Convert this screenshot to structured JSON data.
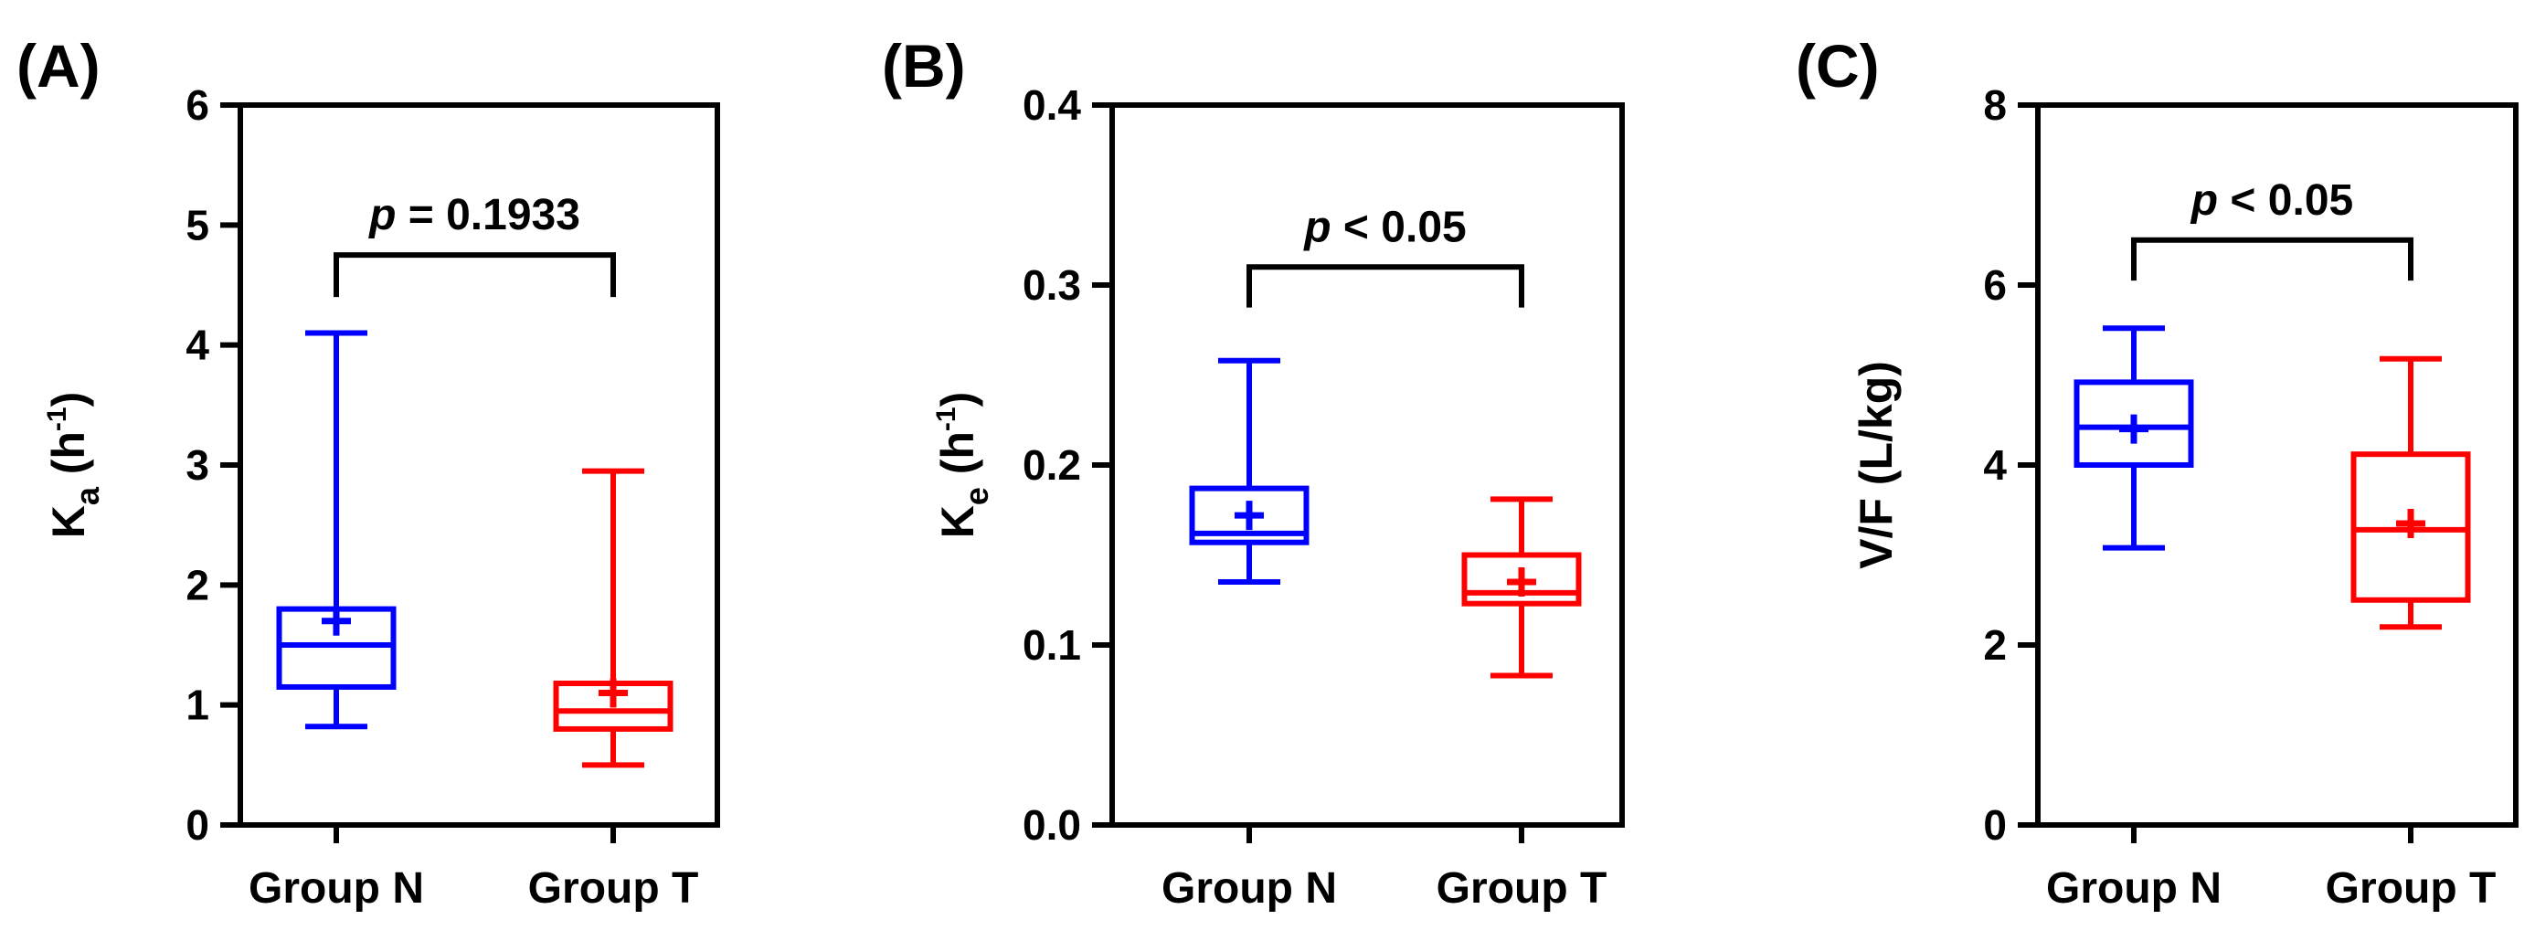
{
  "figure_labels": [
    "(A)",
    "(B)",
    "(C)"
  ],
  "chart_data": [
    {
      "type": "box",
      "panel_label": "(A)",
      "ylabel": {
        "base": "K",
        "subscript": "a",
        "unit_open": " (h",
        "superscript": "-1",
        "unit_close": ")"
      },
      "ylim": [
        0,
        6
      ],
      "yticks": [
        0,
        1,
        2,
        3,
        4,
        5,
        6
      ],
      "ytick_labels": [
        "0",
        "1",
        "2",
        "3",
        "4",
        "5",
        "6"
      ],
      "categories": [
        "Group N",
        "Group T"
      ],
      "series": [
        {
          "name": "Group N",
          "color": "#0000ff",
          "min": 0.82,
          "q1": 1.15,
          "median": 1.5,
          "q3": 1.8,
          "max": 4.1,
          "mean": 1.7
        },
        {
          "name": "Group T",
          "color": "#ff0000",
          "min": 0.5,
          "q1": 0.8,
          "median": 0.95,
          "q3": 1.18,
          "max": 2.95,
          "mean": 1.1
        }
      ],
      "significance": {
        "p_symbol": "p",
        "p_text": " = 0.1933",
        "bracket_y": 4.75,
        "bracket_drop": 0.35
      },
      "grid": false
    },
    {
      "type": "box",
      "panel_label": "(B)",
      "ylabel": {
        "base": "K",
        "subscript": "e",
        "unit_open": " (h",
        "superscript": "-1",
        "unit_close": ")"
      },
      "ylim": [
        0,
        0.4
      ],
      "yticks": [
        0,
        0.1,
        0.2,
        0.3,
        0.4
      ],
      "ytick_labels": [
        "0.0",
        "0.1",
        "0.2",
        "0.3",
        "0.4"
      ],
      "categories": [
        "Group N",
        "Group T"
      ],
      "series": [
        {
          "name": "Group N",
          "color": "#0000ff",
          "min": 0.135,
          "q1": 0.157,
          "median": 0.162,
          "q3": 0.187,
          "max": 0.258,
          "mean": 0.172
        },
        {
          "name": "Group T",
          "color": "#ff0000",
          "min": 0.083,
          "q1": 0.123,
          "median": 0.129,
          "q3": 0.15,
          "max": 0.181,
          "mean": 0.135
        }
      ],
      "significance": {
        "p_symbol": "p",
        "p_text": " < 0.05",
        "bracket_y": 0.31,
        "bracket_drop": 0.0225
      },
      "grid": false
    },
    {
      "type": "box",
      "panel_label": "(C)",
      "ylabel": {
        "base": "V/F (L/kg)",
        "subscript": "",
        "unit_open": "",
        "superscript": "",
        "unit_close": ""
      },
      "ylim": [
        0,
        8
      ],
      "yticks": [
        0,
        2,
        4,
        6,
        8
      ],
      "ytick_labels": [
        "0",
        "2",
        "4",
        "6",
        "8"
      ],
      "categories": [
        "Group N",
        "Group T"
      ],
      "series": [
        {
          "name": "Group N",
          "color": "#0000ff",
          "min": 3.08,
          "q1": 4.0,
          "median": 4.42,
          "q3": 4.92,
          "max": 5.52,
          "mean": 4.4
        },
        {
          "name": "Group T",
          "color": "#ff0000",
          "min": 2.2,
          "q1": 2.5,
          "median": 3.28,
          "q3": 4.12,
          "max": 5.18,
          "mean": 3.35
        }
      ],
      "significance": {
        "p_symbol": "p",
        "p_text": " < 0.05",
        "bracket_y": 6.5,
        "bracket_drop": 0.45
      },
      "grid": false
    }
  ]
}
